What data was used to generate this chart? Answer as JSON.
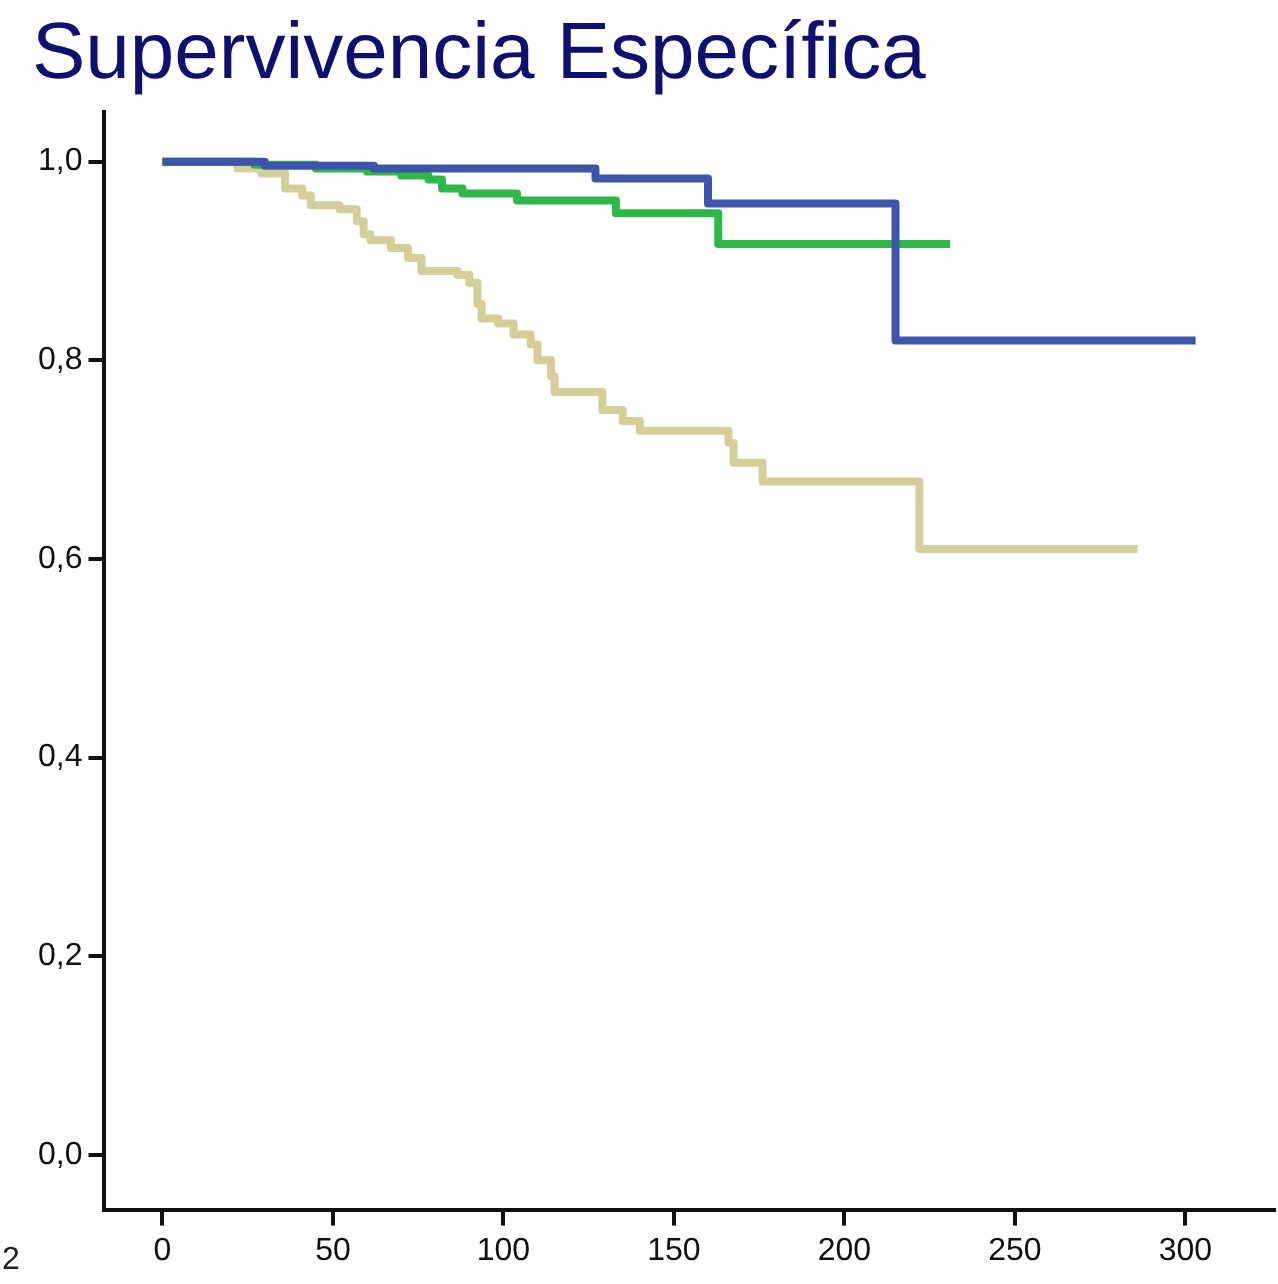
{
  "chart_data": {
    "type": "step",
    "title": "Supervivencia Específica",
    "xlim": [
      -17,
      326
    ],
    "xticks": [
      0,
      50,
      100,
      150,
      200,
      250,
      300
    ],
    "ylim": [
      -0.055,
      1.05
    ],
    "yticks": [
      {
        "value": 0,
        "label": "0,0"
      },
      {
        "value": 0.2,
        "label": "0,2"
      },
      {
        "value": 0.4,
        "label": "0,4"
      },
      {
        "value": 0.6,
        "label": "0,6"
      },
      {
        "value": 0.8,
        "label": "0,8"
      },
      {
        "value": 1,
        "label": "1,0"
      }
    ],
    "grid": false,
    "legend": false,
    "marker": "none",
    "line_style": "solid",
    "annotations": [
      "2"
    ],
    "series": [
      {
        "color": "#3d56aa",
        "x": [
          0,
          30,
          62,
          127,
          160,
          215,
          303
        ],
        "values": [
          1,
          0.996,
          0.993,
          0.983,
          0.958,
          0.82,
          0.82
        ]
      },
      {
        "color": "#2fb84a",
        "x": [
          0,
          27,
          45,
          60,
          70,
          78,
          82,
          88,
          104,
          133,
          163,
          231
        ],
        "values": [
          1,
          0.997,
          0.993,
          0.99,
          0.986,
          0.982,
          0.973,
          0.968,
          0.961,
          0.948,
          0.917,
          0.917
        ]
      },
      {
        "color": "#d4cf98",
        "x": [
          0,
          22,
          29,
          36,
          41,
          43.5,
          52,
          57,
          59,
          61,
          67,
          72,
          76,
          86.5,
          90,
          92.4,
          93.6,
          98.4,
          103,
          108,
          110,
          114,
          115,
          129,
          135,
          140,
          166,
          167.5,
          176,
          222,
          286
        ],
        "values": [
          1,
          0.993,
          0.988,
          0.973,
          0.966,
          0.956,
          0.952,
          0.94,
          0.927,
          0.921,
          0.913,
          0.903,
          0.89,
          0.886,
          0.878,
          0.857,
          0.842,
          0.837,
          0.826,
          0.816,
          0.8,
          0.784,
          0.768,
          0.75,
          0.739,
          0.729,
          0.717,
          0.697,
          0.678,
          0.61,
          0.61
        ]
      }
    ]
  }
}
